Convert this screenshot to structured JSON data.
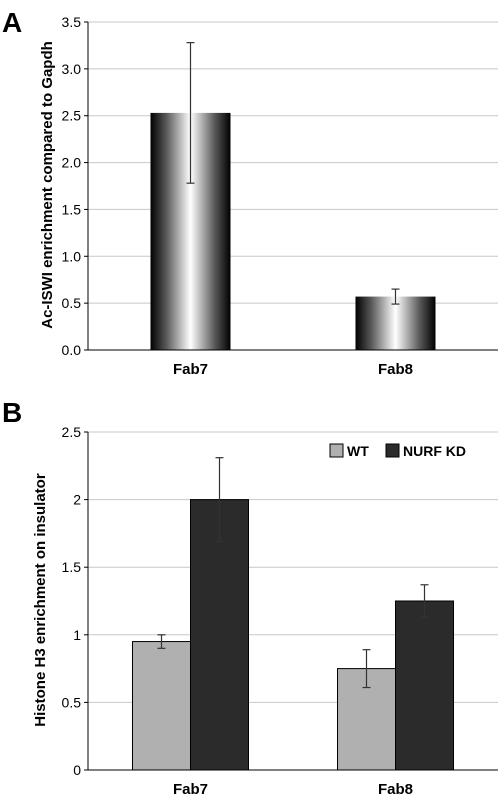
{
  "chart_data": [
    {
      "panel_label": "A",
      "type": "bar",
      "categories": [
        "Fab7",
        "Fab8"
      ],
      "values": [
        2.53,
        0.57
      ],
      "errors": [
        0.75,
        0.08
      ],
      "ylabel": "Ac-ISWI enrichment compared to Gapdh",
      "xlabel": "",
      "ylim": [
        0,
        3.5
      ],
      "yticks": [
        "0.0",
        "0.5",
        "1.0",
        "1.5",
        "2.0",
        "2.5",
        "3.0",
        "3.5"
      ],
      "grid": true,
      "legend": "none"
    },
    {
      "panel_label": "B",
      "type": "bar",
      "categories": [
        "Fab7",
        "Fab8"
      ],
      "series": [
        {
          "name": "WT",
          "values": [
            0.95,
            0.75
          ],
          "errors": [
            0.05,
            0.14
          ],
          "color": "#b0b0b0"
        },
        {
          "name": "NURF KD",
          "values": [
            2.0,
            1.25
          ],
          "errors": [
            0.31,
            0.12
          ],
          "color": "#2b2b2b"
        }
      ],
      "ylabel": "Histone H3 enrichment on insulator",
      "xlabel": "",
      "ylim": [
        0,
        2.5
      ],
      "yticks": [
        "0",
        "0.5",
        "1",
        "1.5",
        "2",
        "2.5"
      ],
      "grid": true,
      "legend": "top-right"
    }
  ]
}
